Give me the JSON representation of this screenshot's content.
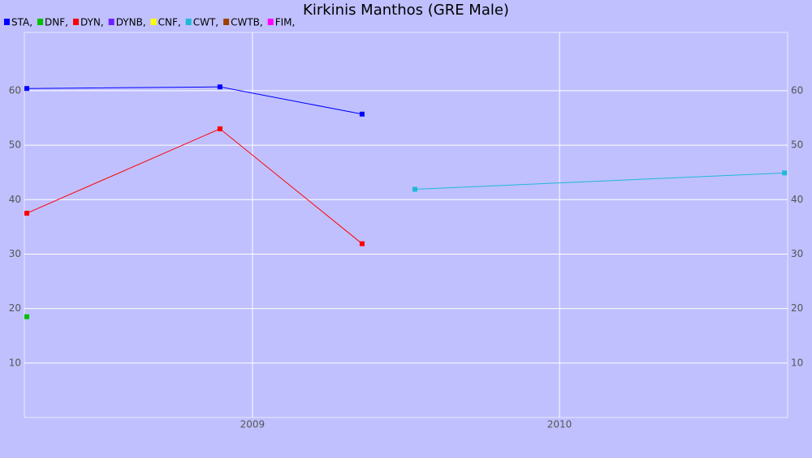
{
  "chart_data": {
    "type": "line",
    "title": "Kirkinis Manthos (GRE Male)",
    "xlim": [
      2008.257,
      2010.743
    ],
    "xticks": [
      2009,
      2010
    ],
    "ylim": [
      0,
      70.7
    ],
    "yticks": [
      10,
      20,
      30,
      40,
      50,
      60
    ],
    "grid": true,
    "series": [
      {
        "name": "STA,",
        "color": "#0000ff",
        "x": [
          2008.265,
          2008.894,
          2009.357
        ],
        "values": [
          60.4,
          60.7,
          55.7
        ]
      },
      {
        "name": "DNF,",
        "color": "#00c000",
        "x": [
          2008.265
        ],
        "values": [
          18.5
        ]
      },
      {
        "name": "DYN,",
        "color": "#ff0000",
        "x": [
          2008.265,
          2008.894,
          2009.357
        ],
        "values": [
          37.5,
          53.0,
          31.9
        ]
      },
      {
        "name": "DYNB,",
        "color": "#7020ff",
        "x": [],
        "values": []
      },
      {
        "name": "CNF,",
        "color": "#ffff00",
        "x": [],
        "values": []
      },
      {
        "name": "CWT,",
        "color": "#20b8d8",
        "x": [
          2009.529,
          2010.733
        ],
        "values": [
          41.9,
          44.9
        ]
      },
      {
        "name": "CWTB,",
        "color": "#a04000",
        "x": [],
        "values": []
      },
      {
        "name": "FIM,",
        "color": "#ff00ff",
        "x": [],
        "values": []
      }
    ]
  }
}
